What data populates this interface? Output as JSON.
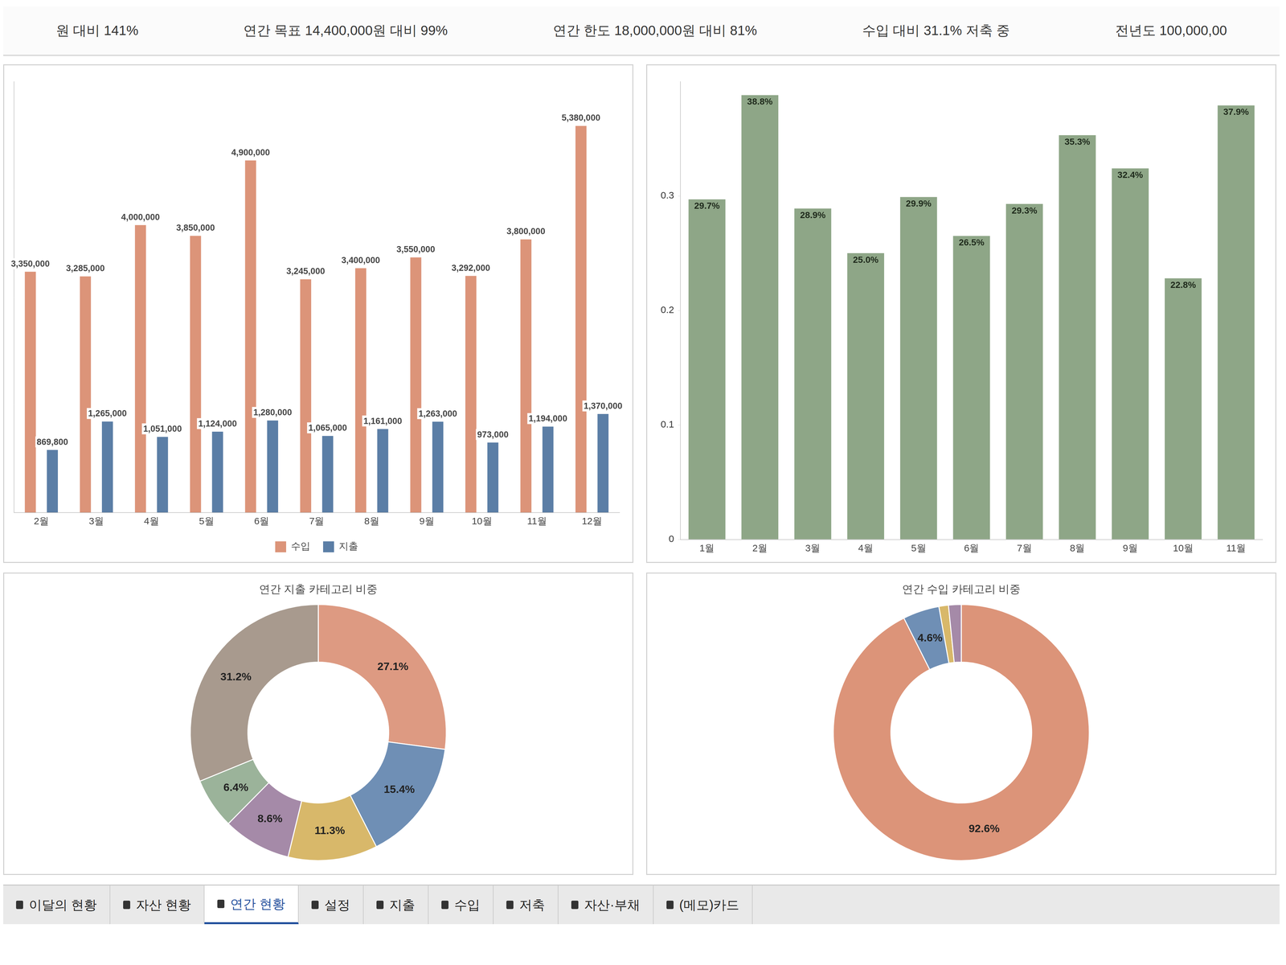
{
  "header": {
    "items": [
      "원 대비 141%",
      "연간 목표 14,400,000원 대비 99%",
      "연간 한도 18,000,000원 대비 81%",
      "수입 대비 31.1% 저축 중",
      "전년도 100,000,00"
    ]
  },
  "chart_data": [
    {
      "type": "bar",
      "categories": [
        "2월",
        "3월",
        "4월",
        "5월",
        "6월",
        "7월",
        "8월",
        "9월",
        "10월",
        "11월",
        "12월"
      ],
      "series": [
        {
          "name": "수입",
          "color": "#dc9479",
          "values": [
            3350000,
            3285000,
            4000000,
            3850000,
            4900000,
            3245000,
            3400000,
            3550000,
            3292000,
            3800000,
            5380000
          ],
          "value_labels": [
            "3,350,000",
            "3,285,000",
            "4,000,000",
            "3,850,000",
            "4,900,000",
            "3,245,000",
            "3,400,000",
            "3,550,000",
            "3,292,000",
            "3,800,000",
            "5,380,000"
          ]
        },
        {
          "name": "지출",
          "color": "#5b7ea6",
          "values": [
            869800,
            1265000,
            1051000,
            1124000,
            1280000,
            1065000,
            1161000,
            1263000,
            973000,
            1194000,
            1370000
          ],
          "value_labels": [
            "869,800",
            "1,265,000",
            "1,051,000",
            "1,124,000",
            "1,280,000",
            "1,065,000",
            "1,161,000",
            "1,263,000",
            "973,000",
            "1,194,000",
            "1,370,000"
          ]
        }
      ],
      "ylim": [
        0,
        6000000
      ],
      "yticks": [],
      "grid": false,
      "legend": "bottom",
      "data_labels": true,
      "tick_labels": "x"
    },
    {
      "type": "bar",
      "categories": [
        "1월",
        "2월",
        "3월",
        "4월",
        "5월",
        "6월",
        "7월",
        "8월",
        "9월",
        "10월",
        "11월"
      ],
      "values": [
        0.297,
        0.388,
        0.289,
        0.25,
        0.299,
        0.265,
        0.293,
        0.353,
        0.324,
        0.228,
        0.379
      ],
      "value_labels": [
        "29.7%",
        "38.8%",
        "28.9%",
        "25.0%",
        "29.9%",
        "26.5%",
        "29.3%",
        "35.3%",
        "32.4%",
        "22.8%",
        "37.9%"
      ],
      "color": "#8ea687",
      "ylim": [
        0,
        0.4
      ],
      "yticks": [
        0,
        0.1,
        0.2,
        0.3
      ],
      "grid": false,
      "data_labels": true
    },
    {
      "type": "doughnut",
      "title": "연간 지출 카테고리 비중",
      "values": [
        27.1,
        15.4,
        11.3,
        8.6,
        6.4,
        31.2
      ],
      "value_labels": [
        "27.1%",
        "15.4%",
        "11.3%",
        "8.6%",
        "6.4%",
        "31.2%"
      ],
      "colors": [
        "#dd9a82",
        "#6f8fb5",
        "#d8b86a",
        "#a58aa8",
        "#9bb39a",
        "#a89a8e"
      ],
      "data_labels": true
    },
    {
      "type": "doughnut",
      "title": "연간 수입 카테고리 비중",
      "values": [
        92.6,
        4.6,
        1.2,
        1.6
      ],
      "value_labels": [
        "92.6%",
        "4.6%",
        null,
        null
      ],
      "colors": [
        "#dc9479",
        "#6f8fb5",
        "#d8b86a",
        "#a58aa8"
      ],
      "data_labels": true
    }
  ],
  "tabs": {
    "items": [
      "이달의 현황",
      "자산 현황",
      "연간 현황",
      "설정",
      "지출",
      "수입",
      "저축",
      "자산·부채",
      "(메모)카드"
    ],
    "active": "연간 현황"
  }
}
